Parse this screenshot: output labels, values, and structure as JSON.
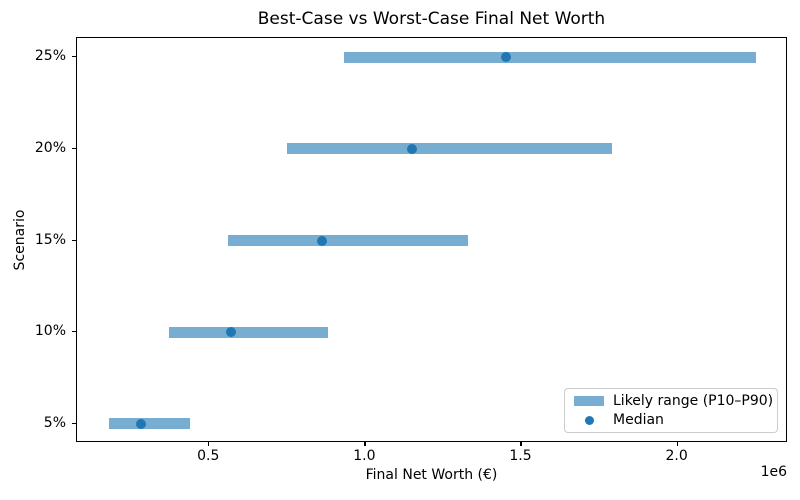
{
  "chart_data": {
    "type": "bar",
    "orientation": "horizontal",
    "title": "Best-Case vs Worst-Case Final Net Worth",
    "xlabel": "Final Net Worth (€)",
    "ylabel": "Scenario",
    "x_offset_label": "1e6",
    "categories": [
      "5%",
      "10%",
      "15%",
      "20%",
      "25%"
    ],
    "series": [
      {
        "name": "Likely range (P10–P90)",
        "type": "range_bar",
        "p10": [
          180000,
          370000,
          560000,
          750000,
          930000
        ],
        "p90": [
          440000,
          880000,
          1330000,
          1790000,
          2250000
        ]
      },
      {
        "name": "Median",
        "type": "scatter",
        "values": [
          280000,
          570000,
          860000,
          1150000,
          1450000
        ]
      }
    ],
    "xlim": [
      76500,
      2353500
    ],
    "ylim": [
      -0.21,
      4.21
    ],
    "xticks": [
      500000,
      1000000,
      1500000,
      2000000
    ],
    "xtick_labels": [
      "0.5",
      "1.0",
      "1.5",
      "2.0"
    ],
    "grid": false,
    "legend": {
      "position": "lower right",
      "entries": [
        {
          "label": "Likely range (P10–P90)",
          "marker": "bar"
        },
        {
          "label": "Median",
          "marker": "dot"
        }
      ]
    },
    "colors": {
      "range_bar": "#78add2",
      "median_dot": "#1f77b4",
      "text": "#000000",
      "spine": "#000000",
      "legend_border": "#cccccc",
      "background": "#ffffff"
    }
  }
}
